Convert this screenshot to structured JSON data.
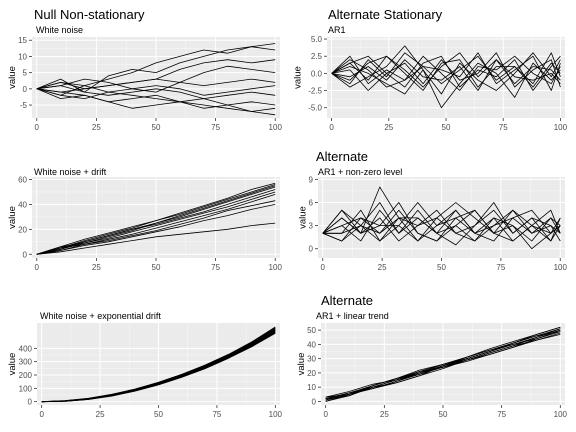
{
  "group_titles": {
    "left": "Null Non-stationary",
    "right": "Alternate Stationary"
  },
  "colors": {
    "panel_bg": "#ebebeb",
    "grid_major": "#ffffff",
    "line": "#000000",
    "tick_text": "#4d4d4d"
  },
  "chart_data": [
    {
      "type": "line",
      "panel_title": "",
      "subtitle": "White noise",
      "ylabel": "value",
      "xlim": [
        -2,
        102
      ],
      "ylim": [
        -9,
        16
      ],
      "x_ticks": [
        0,
        25,
        50,
        75,
        100
      ],
      "y_ticks": [
        -5,
        0,
        5,
        10,
        15
      ],
      "x_tick_labels": [
        "0",
        "25",
        "50",
        "75",
        "100"
      ],
      "y_tick_labels": [
        "-5",
        "0",
        "5",
        "10",
        "15"
      ],
      "x": [
        0,
        10,
        20,
        30,
        40,
        50,
        60,
        70,
        80,
        90,
        100
      ],
      "series": [
        {
          "values": [
            0,
            3,
            -1,
            4,
            6,
            5,
            8,
            10,
            12,
            13,
            14
          ]
        },
        {
          "values": [
            0,
            -2,
            1,
            3,
            5,
            8,
            10,
            12,
            11,
            13,
            12
          ]
        },
        {
          "values": [
            0,
            2,
            0,
            1,
            2,
            3,
            6,
            8,
            9,
            8,
            9
          ]
        },
        {
          "values": [
            0,
            1,
            3,
            2,
            0,
            -1,
            2,
            5,
            7,
            6,
            5
          ]
        },
        {
          "values": [
            0,
            -1,
            0,
            1,
            2,
            3,
            2,
            1,
            2,
            3,
            2
          ]
        },
        {
          "values": [
            0,
            2,
            1,
            -1,
            0,
            1,
            0,
            -2,
            -1,
            0,
            1
          ]
        },
        {
          "values": [
            0,
            1,
            -1,
            -2,
            -1,
            0,
            -1,
            -3,
            -2,
            -1,
            -2
          ]
        },
        {
          "values": [
            0,
            -2,
            -3,
            -1,
            -2,
            -3,
            -4,
            -3,
            -5,
            -4,
            -5
          ]
        },
        {
          "values": [
            0,
            -1,
            -2,
            -4,
            -3,
            -2,
            -4,
            -5,
            -6,
            -7,
            -6
          ]
        },
        {
          "values": [
            0,
            -3,
            -2,
            -4,
            -6,
            -5,
            -4,
            -6,
            -5,
            -7,
            -8
          ]
        }
      ]
    },
    {
      "type": "line",
      "panel_title": "",
      "subtitle": "AR1",
      "ylabel": "value",
      "xlim": [
        -2,
        102
      ],
      "ylim": [
        -6.5,
        5.3
      ],
      "x_ticks": [
        0,
        25,
        50,
        75,
        100
      ],
      "y_ticks": [
        -5,
        -2.5,
        0,
        2.5,
        5
      ],
      "x_tick_labels": [
        "0",
        "25",
        "50",
        "75",
        "100"
      ],
      "y_tick_labels": [
        "-5.0",
        "-2.5",
        "0.0",
        "2.5",
        "5.0"
      ],
      "x": [
        0,
        8,
        16,
        24,
        32,
        40,
        48,
        56,
        64,
        72,
        80,
        88,
        96,
        100
      ],
      "series": [
        {
          "values": [
            0,
            1.5,
            -1,
            2.5,
            0.5,
            -2,
            1,
            3,
            -0.5,
            2,
            -1.5,
            1,
            0.5,
            -1
          ]
        },
        {
          "values": [
            0,
            -1.5,
            2,
            -0.5,
            3,
            1,
            -1.5,
            0.5,
            2.5,
            -1,
            1,
            -2,
            1.5,
            0
          ]
        },
        {
          "values": [
            0,
            2,
            0.5,
            -2,
            -1,
            2.5,
            0,
            -2.5,
            1,
            0.5,
            2.5,
            0,
            -1.5,
            1
          ]
        },
        {
          "values": [
            0,
            -2,
            -0.5,
            1,
            4,
            0.5,
            -3,
            1.5,
            -1,
            -2.5,
            0,
            3,
            -0.5,
            2
          ]
        },
        {
          "values": [
            0,
            0.5,
            -2.5,
            0,
            1.5,
            -1.5,
            2,
            -1,
            0,
            3,
            -2,
            0.5,
            2,
            -2
          ]
        },
        {
          "values": [
            0,
            1,
            0,
            -1.5,
            -3,
            0.5,
            -5,
            -1.5,
            1.5,
            0,
            -3.5,
            1.5,
            -1,
            0.5
          ]
        },
        {
          "values": [
            0,
            -1,
            1.5,
            2.5,
            0,
            -2.5,
            1.5,
            2,
            -2,
            1,
            1,
            -1.5,
            3,
            -0.5
          ]
        },
        {
          "values": [
            0,
            2.5,
            -1.5,
            0.5,
            -1,
            1,
            0.5,
            -0.5,
            3,
            -1.5,
            0.5,
            2.5,
            -2.5,
            1.5
          ]
        },
        {
          "values": [
            0,
            -0.5,
            1,
            -1,
            2,
            -0.5,
            -1,
            1,
            -2.5,
            2,
            -0.5,
            -1,
            0,
            -1.5
          ]
        },
        {
          "values": [
            0,
            1.5,
            2.5,
            0,
            -2,
            1.5,
            2.5,
            -2,
            0.5,
            -0.5,
            2,
            -2.5,
            1,
            2.5
          ]
        }
      ]
    },
    {
      "type": "line",
      "panel_title": "",
      "subtitle": "White noise + drift",
      "ylabel": "value",
      "xlim": [
        -2,
        102
      ],
      "ylim": [
        -3,
        62
      ],
      "x_ticks": [
        0,
        25,
        50,
        75,
        100
      ],
      "y_ticks": [
        0,
        20,
        40,
        60
      ],
      "x_tick_labels": [
        "0",
        "25",
        "50",
        "75",
        "100"
      ],
      "y_tick_labels": [
        "0",
        "20",
        "40",
        "60"
      ],
      "x": [
        0,
        10,
        20,
        30,
        40,
        50,
        60,
        70,
        80,
        90,
        100
      ],
      "series": [
        {
          "values": [
            0,
            6,
            12,
            17,
            22,
            27,
            33,
            39,
            45,
            52,
            57
          ]
        },
        {
          "values": [
            0,
            5,
            11,
            16,
            21,
            27,
            32,
            38,
            44,
            50,
            56
          ]
        },
        {
          "values": [
            0,
            4,
            10,
            15,
            20,
            25,
            31,
            37,
            43,
            49,
            55
          ]
        },
        {
          "values": [
            0,
            6,
            9,
            14,
            19,
            25,
            30,
            36,
            42,
            48,
            54
          ]
        },
        {
          "values": [
            0,
            5,
            10,
            15,
            20,
            24,
            29,
            34,
            40,
            46,
            52
          ]
        },
        {
          "values": [
            0,
            4,
            9,
            13,
            18,
            23,
            28,
            33,
            38,
            44,
            50
          ]
        },
        {
          "values": [
            0,
            3,
            8,
            12,
            16,
            21,
            26,
            31,
            36,
            42,
            48
          ]
        },
        {
          "values": [
            0,
            5,
            8,
            11,
            15,
            19,
            24,
            29,
            35,
            39,
            43
          ]
        },
        {
          "values": [
            0,
            3,
            7,
            10,
            14,
            18,
            22,
            27,
            31,
            36,
            40
          ]
        },
        {
          "values": [
            0,
            2,
            5,
            8,
            11,
            14,
            16,
            18,
            20,
            23,
            25
          ]
        }
      ]
    },
    {
      "type": "line",
      "panel_title": "Alternate",
      "subtitle": "AR1 + non-zero level",
      "ylabel": "value",
      "xlim": [
        -2,
        102
      ],
      "ylim": [
        -1.2,
        9.3
      ],
      "x_ticks": [
        0,
        25,
        50,
        75,
        100
      ],
      "y_ticks": [
        0,
        3,
        6,
        9
      ],
      "x_tick_labels": [
        "0",
        "25",
        "50",
        "75",
        "100"
      ],
      "y_tick_labels": [
        "0",
        "3",
        "6",
        "9"
      ],
      "x": [
        0,
        8,
        16,
        24,
        32,
        40,
        48,
        56,
        64,
        72,
        80,
        88,
        96,
        100
      ],
      "series": [
        {
          "values": [
            2,
            4,
            2,
            8,
            4,
            1,
            3,
            5,
            2,
            4,
            1,
            3,
            2,
            3
          ]
        },
        {
          "values": [
            2,
            1,
            4,
            3,
            6,
            2,
            1,
            4,
            5,
            2,
            3,
            1,
            4,
            2
          ]
        },
        {
          "values": [
            2,
            3,
            1,
            5,
            2,
            4,
            2,
            0.5,
            3,
            6,
            2,
            4,
            1,
            4
          ]
        },
        {
          "values": [
            2,
            5,
            3,
            2,
            4,
            3,
            5,
            2,
            1,
            3,
            5,
            2,
            3,
            1
          ]
        },
        {
          "values": [
            2,
            2,
            5,
            1,
            3,
            6,
            3,
            4,
            2,
            1,
            4,
            5,
            2,
            3
          ]
        },
        {
          "values": [
            2,
            4,
            2,
            4,
            1,
            3,
            4,
            6,
            4,
            2,
            1,
            3,
            5,
            2
          ]
        },
        {
          "values": [
            2,
            1,
            3,
            6,
            2,
            5,
            2,
            3,
            1,
            4,
            3,
            0,
            2,
            4
          ]
        },
        {
          "values": [
            2,
            3,
            4,
            2,
            5,
            2,
            1,
            3,
            5,
            2,
            5,
            3,
            1,
            3
          ]
        },
        {
          "values": [
            2,
            5,
            2,
            3,
            3,
            1,
            4,
            2,
            3,
            5,
            2,
            4,
            3,
            2
          ]
        },
        {
          "values": [
            2,
            2,
            3,
            1,
            4,
            4,
            2,
            5,
            2,
            3,
            4,
            2,
            4,
            3
          ]
        }
      ]
    },
    {
      "type": "line",
      "panel_title": "",
      "subtitle": "White noise + exponential drift",
      "ylabel": "value",
      "xlim": [
        -2,
        102
      ],
      "ylim": [
        -25,
        590
      ],
      "x_ticks": [
        0,
        25,
        50,
        75,
        100
      ],
      "y_ticks": [
        0,
        100,
        200,
        300,
        400
      ],
      "x_tick_labels": [
        "0",
        "25",
        "50",
        "75",
        "100"
      ],
      "y_tick_labels": [
        "0",
        "100",
        "200",
        "300",
        "400"
      ],
      "x": [
        0,
        10,
        20,
        30,
        40,
        50,
        60,
        70,
        80,
        90,
        100
      ],
      "series": [
        {
          "values": [
            0,
            8,
            25,
            55,
            95,
            145,
            205,
            275,
            355,
            450,
            560
          ]
        },
        {
          "values": [
            0,
            7,
            24,
            53,
            93,
            142,
            202,
            272,
            351,
            445,
            553
          ]
        },
        {
          "values": [
            0,
            6,
            23,
            52,
            91,
            140,
            200,
            269,
            348,
            441,
            548
          ]
        },
        {
          "values": [
            0,
            6,
            22,
            50,
            89,
            138,
            197,
            266,
            345,
            437,
            543
          ]
        },
        {
          "values": [
            0,
            5,
            21,
            49,
            88,
            136,
            195,
            263,
            342,
            433,
            538
          ]
        },
        {
          "values": [
            0,
            5,
            20,
            48,
            86,
            134,
            192,
            260,
            339,
            429,
            533
          ]
        },
        {
          "values": [
            0,
            4,
            19,
            46,
            84,
            132,
            190,
            257,
            335,
            425,
            528
          ]
        },
        {
          "values": [
            0,
            4,
            18,
            45,
            83,
            130,
            188,
            254,
            332,
            421,
            523
          ]
        },
        {
          "values": [
            0,
            3,
            17,
            44,
            81,
            128,
            185,
            251,
            329,
            417,
            518
          ]
        },
        {
          "values": [
            0,
            3,
            16,
            42,
            79,
            126,
            183,
            248,
            326,
            413,
            513
          ]
        }
      ]
    },
    {
      "type": "line",
      "panel_title": "Alternate",
      "subtitle": "AR1 + linear trend",
      "ylabel": "value",
      "xlim": [
        -2,
        102
      ],
      "ylim": [
        -2.5,
        55
      ],
      "x_ticks": [
        0,
        25,
        50,
        75,
        100
      ],
      "y_ticks": [
        0,
        10,
        20,
        30,
        40,
        50
      ],
      "x_tick_labels": [
        "0",
        "25",
        "50",
        "75",
        "100"
      ],
      "y_tick_labels": [
        "0",
        "10",
        "20",
        "30",
        "40",
        "50"
      ],
      "x": [
        0,
        10,
        20,
        30,
        40,
        50,
        60,
        70,
        80,
        90,
        100
      ],
      "series": [
        {
          "values": [
            2,
            6,
            11,
            16,
            21,
            26,
            31,
            36,
            41,
            47,
            52
          ]
        },
        {
          "values": [
            1,
            5,
            10,
            15,
            20,
            25,
            30,
            35,
            41,
            46,
            51
          ]
        },
        {
          "values": [
            3,
            7,
            12,
            15,
            19,
            24,
            29,
            34,
            39,
            45,
            50
          ]
        },
        {
          "values": [
            0,
            5,
            9,
            14,
            20,
            26,
            30,
            35,
            40,
            44,
            49
          ]
        },
        {
          "values": [
            2,
            4,
            10,
            15,
            21,
            24,
            28,
            33,
            38,
            44,
            50
          ]
        },
        {
          "values": [
            1,
            6,
            10,
            13,
            18,
            23,
            29,
            34,
            39,
            43,
            48
          ]
        },
        {
          "values": [
            3,
            5,
            9,
            14,
            19,
            25,
            31,
            36,
            40,
            45,
            51
          ]
        },
        {
          "values": [
            0,
            4,
            11,
            16,
            20,
            24,
            30,
            35,
            41,
            46,
            49
          ]
        },
        {
          "values": [
            2,
            6,
            9,
            13,
            18,
            25,
            29,
            33,
            38,
            43,
            47
          ]
        },
        {
          "values": [
            1,
            5,
            11,
            16,
            22,
            26,
            31,
            37,
            42,
            47,
            52
          ]
        }
      ]
    }
  ]
}
